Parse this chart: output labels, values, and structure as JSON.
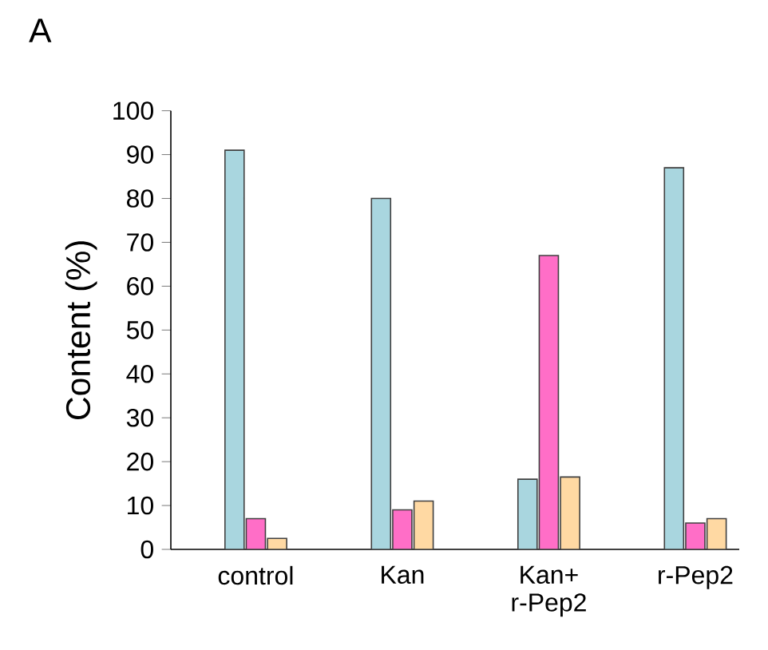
{
  "chart_data": {
    "type": "bar",
    "annotations": [
      "A"
    ],
    "ylabel": "Content  (%)",
    "categories": [
      "control",
      "Kan",
      "Kan+ r-Pep2",
      "r-Pep2"
    ],
    "series": [
      {
        "color": "#a9d6df",
        "values": [
          91,
          80,
          16,
          87
        ]
      },
      {
        "color": "#ff6ec7",
        "values": [
          7,
          9,
          67,
          6
        ]
      },
      {
        "color": "#ffd9a3",
        "values": [
          2.5,
          11,
          16.5,
          7
        ]
      }
    ],
    "ylim": [
      0,
      100
    ],
    "yticks": [
      0,
      10,
      20,
      30,
      40,
      50,
      60,
      70,
      80,
      90,
      100
    ],
    "grid": false
  }
}
